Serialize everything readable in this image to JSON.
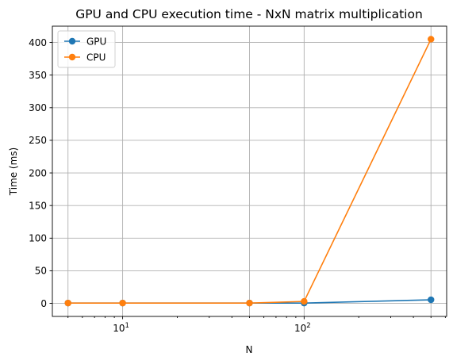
{
  "chart_data": {
    "type": "line",
    "title": "GPU and CPU execution time - NxN matrix multiplication",
    "xlabel": "N",
    "ylabel": "Time (ms)",
    "xscale": "log",
    "x": [
      5,
      10,
      50,
      100,
      500
    ],
    "xlim": [
      4.1,
      610
    ],
    "ylim": [
      -20,
      425
    ],
    "grid": true,
    "legend_position": "top-left",
    "series": [
      {
        "name": "GPU",
        "color": "#1f77b4",
        "values": [
          0.5,
          0.5,
          0.5,
          0.5,
          5.5
        ]
      },
      {
        "name": "CPU",
        "color": "#ff7f0e",
        "values": [
          0.5,
          0.5,
          0.5,
          3.0,
          405
        ]
      }
    ],
    "yticks": [
      0,
      50,
      100,
      150,
      200,
      250,
      300,
      350,
      400
    ],
    "xticks_major": [
      {
        "value": 10,
        "base": "10",
        "exp": "1"
      },
      {
        "value": 100,
        "base": "10",
        "exp": "2"
      }
    ]
  }
}
